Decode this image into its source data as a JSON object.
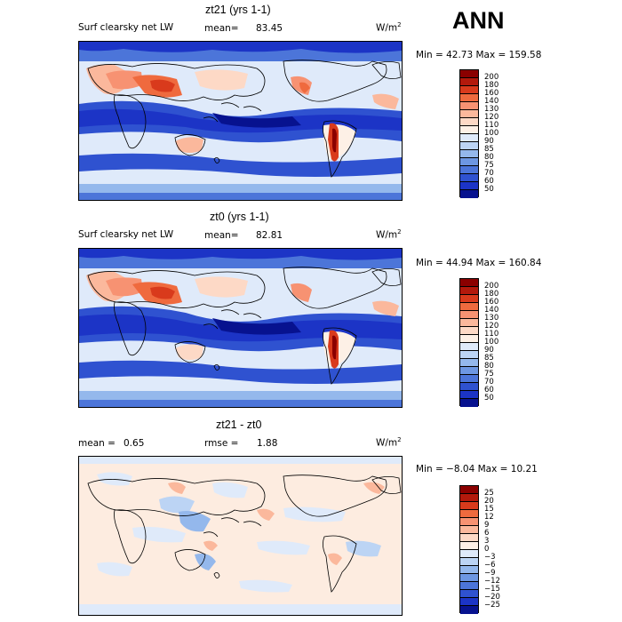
{
  "season": "ANN",
  "units": "W/m",
  "units_sup": "2",
  "panels": [
    {
      "title": "zt21 (yrs 1-1)",
      "field": "Surf clearsky net LW",
      "mean_label": "mean=",
      "mean_value": "83.45",
      "minmax": "Min =  42.73 Max = 159.58",
      "kind": "abs"
    },
    {
      "title": "zt0 (yrs 1-1)",
      "field": "Surf clearsky net LW",
      "mean_label": "mean=",
      "mean_value": "82.81",
      "minmax": "Min =  44.94 Max = 160.84",
      "kind": "abs"
    },
    {
      "title": "zt21 - zt0",
      "mean_label": "mean =",
      "mean_value": "0.65",
      "rmse_label": "rmse =",
      "rmse_value": "1.88",
      "minmax": "Min = −8.04 Max =  10.21",
      "kind": "diff"
    }
  ],
  "colorbar_abs": {
    "labels": [
      "200",
      "180",
      "160",
      "140",
      "130",
      "120",
      "110",
      "100",
      "90",
      "85",
      "80",
      "75",
      "70",
      "60",
      "50"
    ],
    "colors": [
      "#8b0000",
      "#b3190c",
      "#d93a1c",
      "#ef6a3e",
      "#f79272",
      "#fbb89c",
      "#fdd9c6",
      "#fdf0e6",
      "#dfeafa",
      "#bcd4f4",
      "#94b8ec",
      "#6d97e2",
      "#4c75d9",
      "#2f52d0",
      "#1c34c6",
      "#07128f"
    ]
  },
  "colorbar_diff": {
    "labels": [
      "25",
      "20",
      "15",
      "12",
      "9",
      "6",
      "3",
      "0",
      "−3",
      "−6",
      "−9",
      "−12",
      "−15",
      "−20",
      "−25"
    ],
    "colors": [
      "#8b0000",
      "#b3190c",
      "#d93a1c",
      "#ef6a3e",
      "#f79272",
      "#fbb89c",
      "#fdd9c6",
      "#fdf0e6",
      "#dfeafa",
      "#bcd4f4",
      "#94b8ec",
      "#6d97e2",
      "#4c75d9",
      "#2f52d0",
      "#1c34c6",
      "#07128f"
    ]
  }
}
